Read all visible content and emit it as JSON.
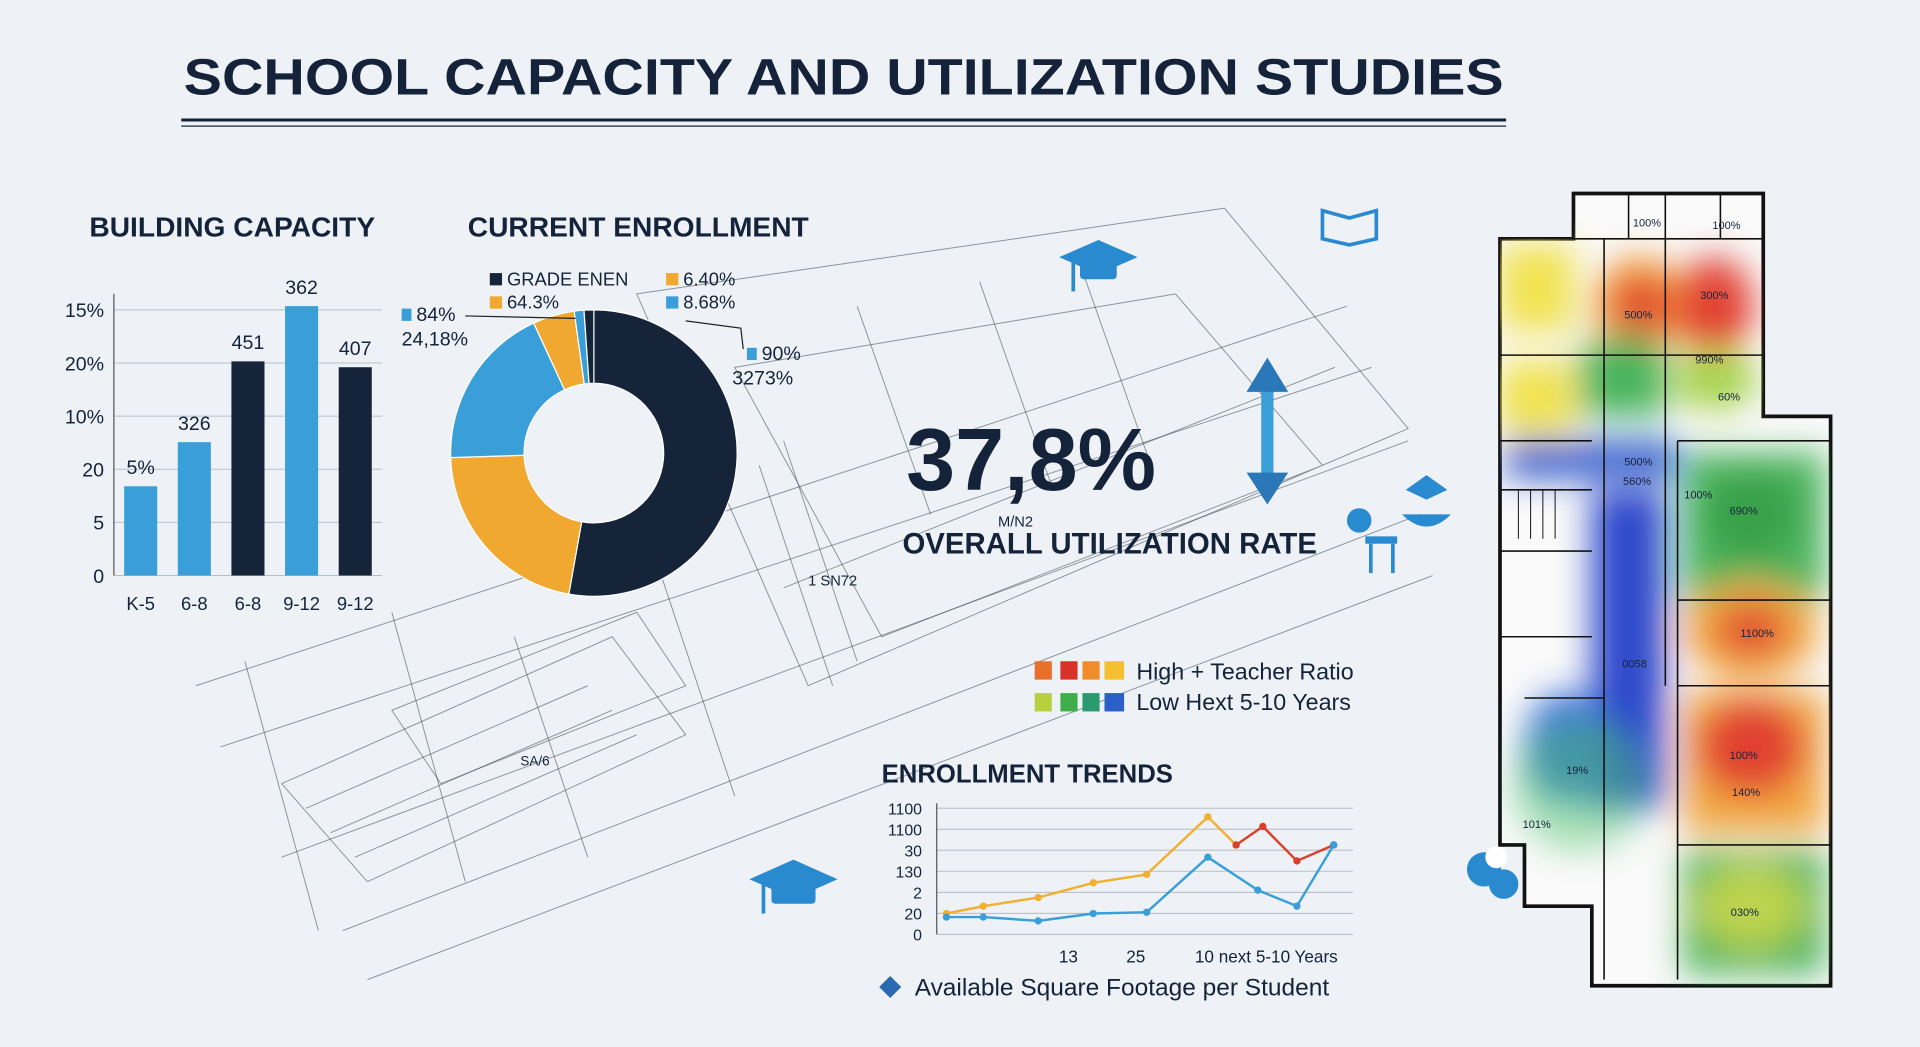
{
  "header": {
    "title": "SCHOOL CAPACITY AND UTILIZATION STUDIES"
  },
  "chart_data": [
    {
      "type": "bar",
      "title": "BUILDING CAPACITY",
      "categories": [
        "K-5",
        "6-8",
        "6-8",
        "9-12",
        "9-12"
      ],
      "values": [
        1.68,
        2.51,
        4.03,
        5.07,
        3.92
      ],
      "value_labels": [
        "5%",
        "326",
        "451",
        "362",
        "407"
      ],
      "colors": [
        "#3a9fd8",
        "#3a9fd8",
        "#16243a",
        "#3a9fd8",
        "#16243a"
      ],
      "ylim": [
        0,
        5.3
      ],
      "yticks": [
        0,
        {
          "value": 1,
          "label": "5"
        },
        {
          "value": 2,
          "label": "20"
        },
        {
          "value": 3,
          "label": "10%"
        },
        {
          "value": 4,
          "label": "20%"
        },
        {
          "value": 5,
          "label": "15%"
        }
      ],
      "grid": true
    },
    {
      "type": "pie",
      "title": "CURRENT ENROLLMENT",
      "values": [
        52.8,
        21.7,
        18.6,
        4.7,
        1.1,
        1.1
      ],
      "colors": [
        "#16243a",
        "#f0a830",
        "#3a9fd8",
        "#f0a830",
        "#3a9fd8",
        "#16243a"
      ],
      "legend": [
        {
          "name": "GRADE ENEN",
          "color": "#16243a"
        },
        {
          "name": "6.40%",
          "color": "#f0a830"
        },
        {
          "name": "64.3%",
          "color": "#f0a830"
        },
        {
          "name": "8.68%",
          "color": "#3a9fd8"
        }
      ],
      "annotations": [
        {
          "name": "84%",
          "text": "24,18%",
          "color": "#3a9fd8"
        },
        {
          "name": "90%",
          "text": "3273%",
          "color": "#3a9fd8"
        }
      ]
    },
    {
      "type": "line",
      "title": "ENROLLMENT TRENDS",
      "series": [
        {
          "color": "#f0b030",
          "x": [
            0,
            0.95,
            2.37,
            3.79,
            5.17,
            6.75,
            7.48
          ],
          "values": [
            0.99,
            1.34,
            1.75,
            2.45,
            2.85,
            5.59,
            4.25
          ]
        },
        {
          "color": "#d9402a",
          "x": [
            7.48,
            8.17,
            9.05,
            10
          ],
          "values": [
            4.25,
            5.13,
            3.49,
            4.25
          ]
        },
        {
          "color": "#3a9fd8",
          "x": [
            0,
            0.95,
            2.37,
            3.79,
            5.17,
            6.75,
            8.04,
            9.05,
            10
          ],
          "values": [
            0.82,
            0.82,
            0.64,
            0.99,
            1.05,
            3.67,
            2.1,
            1.34,
            4.25
          ]
        }
      ],
      "xlim": [
        -0.25,
        10.5
      ],
      "xticks": [
        {
          "value": 3.15,
          "label": "13"
        },
        {
          "value": 4.89,
          "label": "25"
        },
        {
          "value": 8.26,
          "label": "10 next 5-10 Years"
        }
      ],
      "ylim": [
        0,
        6
      ],
      "yticks": [
        0,
        {
          "value": 1,
          "label": "20"
        },
        {
          "value": 2,
          "label": "2"
        },
        {
          "value": 3,
          "label": "130"
        },
        {
          "value": 4,
          "label": "30"
        },
        {
          "value": 5,
          "label": "1100"
        },
        {
          "value": 6,
          "label": "1100"
        }
      ],
      "grid": true,
      "footnote": "Available Square Footage per Student"
    }
  ],
  "stat": {
    "value": "37,8%",
    "caption": "OVERALL UTILIZATION RATE"
  },
  "heat_legend": [
    "High + Teacher Ratio",
    "Low Hext 5-10 Years"
  ],
  "blueprint_labels": [
    "M/N2",
    "1 SN72",
    "SA/6"
  ],
  "floorplan": {
    "labels": [
      "100%",
      "100%",
      "500%",
      "300%",
      "990%",
      "60%",
      "500%",
      "560%",
      "100%",
      "690%",
      "1100%",
      "0058",
      "100%",
      "140%",
      "19%",
      "101%",
      "030%"
    ]
  }
}
